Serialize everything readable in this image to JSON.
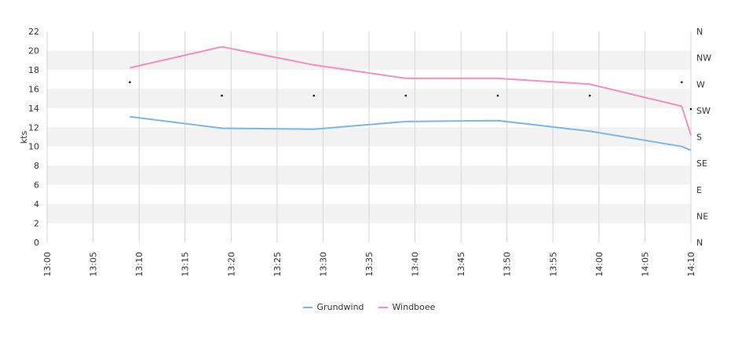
{
  "chart_data": {
    "type": "line",
    "ylabel": "kts",
    "ylim": [
      0,
      22
    ],
    "yticks": [
      0,
      2,
      4,
      6,
      8,
      10,
      12,
      14,
      16,
      18,
      20,
      22
    ],
    "xlim": [
      "13:00",
      "14:10"
    ],
    "xticks": [
      "13:00",
      "13:05",
      "13:10",
      "13:15",
      "13:20",
      "13:25",
      "13:30",
      "13:35",
      "13:40",
      "13:45",
      "13:50",
      "13:55",
      "14:00",
      "14:05",
      "14:10"
    ],
    "direction_axis": [
      "N",
      "NE",
      "E",
      "SE",
      "S",
      "SW",
      "W",
      "NW",
      "N"
    ],
    "series": [
      {
        "name": "Grundwind",
        "color": "#7cb5ec",
        "points": [
          {
            "x": "13:09",
            "y": 13.1
          },
          {
            "x": "13:19",
            "y": 11.9
          },
          {
            "x": "13:29",
            "y": 11.8
          },
          {
            "x": "13:39",
            "y": 12.6
          },
          {
            "x": "13:49",
            "y": 12.7
          },
          {
            "x": "13:59",
            "y": 11.6
          },
          {
            "x": "14:09",
            "y": 10.0
          },
          {
            "x": "14:10",
            "y": 9.6
          }
        ]
      },
      {
        "name": "Windboee",
        "color": "#f28fc0",
        "points": [
          {
            "x": "13:09",
            "y": 18.2
          },
          {
            "x": "13:19",
            "y": 20.4
          },
          {
            "x": "13:29",
            "y": 18.5
          },
          {
            "x": "13:39",
            "y": 17.1
          },
          {
            "x": "13:49",
            "y": 17.1
          },
          {
            "x": "13:59",
            "y": 16.5
          },
          {
            "x": "14:09",
            "y": 14.2
          },
          {
            "x": "14:10",
            "y": 11.2
          }
        ]
      }
    ],
    "direction_points": [
      {
        "x": "13:09",
        "y": 16.7
      },
      {
        "x": "13:19",
        "y": 15.3
      },
      {
        "x": "13:29",
        "y": 15.3
      },
      {
        "x": "13:39",
        "y": 15.3
      },
      {
        "x": "13:49",
        "y": 15.3
      },
      {
        "x": "13:59",
        "y": 15.3
      },
      {
        "x": "14:09",
        "y": 16.7
      },
      {
        "x": "14:10",
        "y": 13.9
      }
    ],
    "grid": true,
    "legend": "bottom-center"
  }
}
